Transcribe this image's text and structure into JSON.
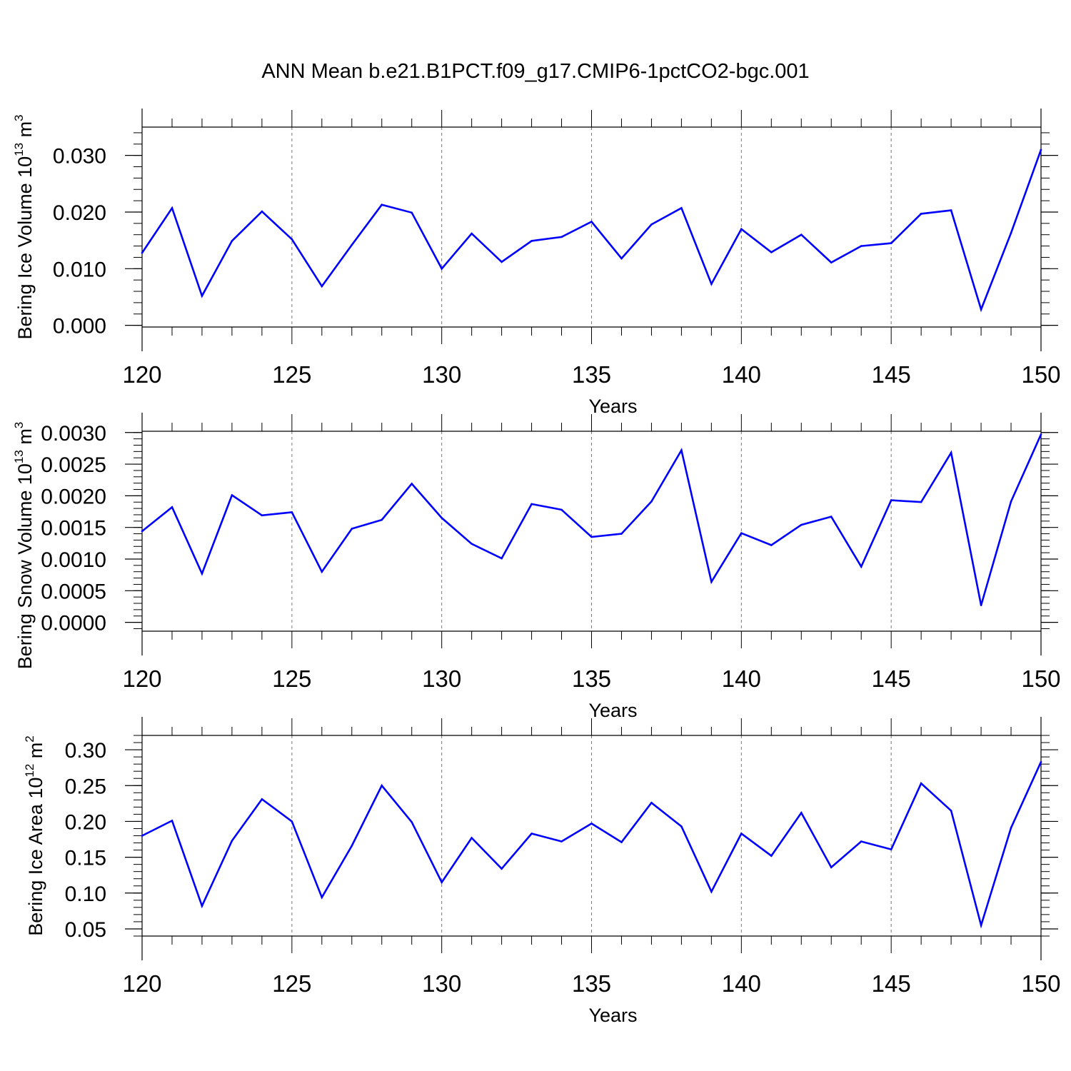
{
  "title": "ANN Mean b.e21.B1PCT.f09_g17.CMIP6-1pctCO2-bgc.001",
  "colors": {
    "line": "#0000ff",
    "axis": "#000000",
    "grid": "#777777"
  },
  "chart_data": [
    {
      "type": "line",
      "xlabel": "Years",
      "ylabel": {
        "base": "Bering Ice Volume 10",
        "exp": "13",
        "unit": " m",
        "unit_exp": "3"
      },
      "xlim": [
        120,
        150
      ],
      "ylim": [
        -0.0003,
        0.035
      ],
      "x_ticks": [
        120,
        125,
        130,
        135,
        140,
        145,
        150
      ],
      "y_ticks": [
        0.0,
        0.01,
        0.02,
        0.03
      ],
      "y_tick_labels": [
        "0.000",
        "0.010",
        "0.020",
        "0.030"
      ],
      "y_minor_step": 0.002,
      "grid": "vertical dashed at major x ticks",
      "x": [
        120,
        121,
        122,
        123,
        124,
        125,
        126,
        127,
        128,
        129,
        130,
        131,
        132,
        133,
        134,
        135,
        136,
        137,
        138,
        139,
        140,
        141,
        142,
        143,
        144,
        145,
        146,
        147,
        148,
        149,
        150
      ],
      "values": [
        0.0128,
        0.0207,
        0.0052,
        0.0149,
        0.0201,
        0.0152,
        0.0069,
        0.0142,
        0.0213,
        0.0199,
        0.01,
        0.0162,
        0.0112,
        0.0149,
        0.0156,
        0.0183,
        0.0118,
        0.0178,
        0.0207,
        0.0073,
        0.017,
        0.0129,
        0.016,
        0.0111,
        0.014,
        0.0145,
        0.0197,
        0.0203,
        0.0028,
        0.0163,
        0.031
      ]
    },
    {
      "type": "line",
      "xlabel": "Years",
      "ylabel": {
        "base": "Bering Snow Volume 10",
        "exp": "13",
        "unit": " m",
        "unit_exp": "3"
      },
      "xlim": [
        120,
        150
      ],
      "ylim": [
        -0.00014,
        0.00302
      ],
      "x_ticks": [
        120,
        125,
        130,
        135,
        140,
        145,
        150
      ],
      "y_ticks": [
        0.0,
        0.0005,
        0.001,
        0.0015,
        0.002,
        0.0025,
        0.003
      ],
      "y_tick_labels": [
        "0.0000",
        "0.0005",
        "0.0010",
        "0.0015",
        "0.0020",
        "0.0025",
        "0.0030"
      ],
      "y_minor_step": 0.0001,
      "grid": "vertical dashed at major x ticks",
      "x": [
        120,
        121,
        122,
        123,
        124,
        125,
        126,
        127,
        128,
        129,
        130,
        131,
        132,
        133,
        134,
        135,
        136,
        137,
        138,
        139,
        140,
        141,
        142,
        143,
        144,
        145,
        146,
        147,
        148,
        149,
        150
      ],
      "values": [
        0.00144,
        0.00182,
        0.00077,
        0.00201,
        0.00169,
        0.00174,
        0.0008,
        0.00148,
        0.00162,
        0.00219,
        0.00165,
        0.00124,
        0.00101,
        0.00187,
        0.00178,
        0.00135,
        0.0014,
        0.00191,
        0.00272,
        0.00064,
        0.00141,
        0.00122,
        0.00154,
        0.00167,
        0.00088,
        0.00193,
        0.0019,
        0.00268,
        0.00027,
        0.00191,
        0.00297
      ]
    },
    {
      "type": "line",
      "xlabel": "Years",
      "ylabel": {
        "base": "Bering Ice Area 10",
        "exp": "12",
        "unit": " m",
        "unit_exp": "2"
      },
      "xlim": [
        120,
        150
      ],
      "ylim": [
        0.04,
        0.32
      ],
      "x_ticks": [
        120,
        125,
        130,
        135,
        140,
        145,
        150
      ],
      "y_ticks": [
        0.05,
        0.1,
        0.15,
        0.2,
        0.25,
        0.3
      ],
      "y_tick_labels": [
        "0.05",
        "0.10",
        "0.15",
        "0.20",
        "0.25",
        "0.30"
      ],
      "y_minor_step": 0.01,
      "grid": "vertical dashed at major x ticks",
      "x": [
        120,
        121,
        122,
        123,
        124,
        125,
        126,
        127,
        128,
        129,
        130,
        131,
        132,
        133,
        134,
        135,
        136,
        137,
        138,
        139,
        140,
        141,
        142,
        143,
        144,
        145,
        146,
        147,
        148,
        149,
        150
      ],
      "values": [
        0.18,
        0.201,
        0.082,
        0.173,
        0.231,
        0.2,
        0.094,
        0.166,
        0.25,
        0.199,
        0.115,
        0.177,
        0.134,
        0.183,
        0.172,
        0.197,
        0.171,
        0.226,
        0.193,
        0.102,
        0.183,
        0.152,
        0.212,
        0.136,
        0.172,
        0.161,
        0.253,
        0.215,
        0.055,
        0.191,
        0.283
      ]
    }
  ]
}
